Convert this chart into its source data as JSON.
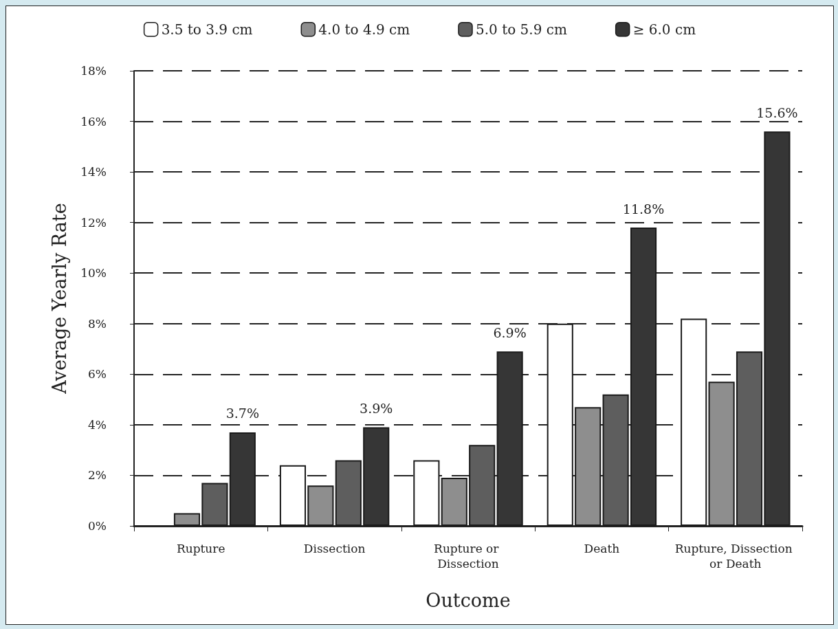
{
  "chart_data": {
    "type": "bar",
    "xlabel": "Outcome",
    "ylabel": "Average Yearly Rate",
    "categories": [
      "Rupture",
      "Dissection",
      "Rupture or Dissection",
      "Death",
      "Rupture, Dissection or Death"
    ],
    "series": [
      {
        "name": "3.5 to 3.9 cm",
        "color": "#ffffff",
        "values": [
          null,
          2.4,
          2.6,
          8.0,
          8.2
        ]
      },
      {
        "name": "4.0 to 4.9 cm",
        "color": "#8e8e8e",
        "values": [
          0.5,
          1.6,
          1.9,
          4.7,
          5.7
        ]
      },
      {
        "name": "5.0 to 5.9 cm",
        "color": "#5e5e5e",
        "values": [
          1.7,
          2.6,
          3.2,
          5.2,
          6.9
        ]
      },
      {
        "name": "≥ 6.0 cm",
        "color": "#363636",
        "values": [
          3.7,
          3.9,
          6.9,
          11.8,
          15.6
        ],
        "value_labels": [
          "3.7%",
          "3.9%",
          "6.9%",
          "11.8%",
          "15.6%"
        ]
      }
    ],
    "ylim": [
      0,
      18
    ],
    "yticks": [
      {
        "value": 0,
        "label": "0%"
      },
      {
        "value": 2,
        "label": "2%"
      },
      {
        "value": 4,
        "label": "4%"
      },
      {
        "value": 6,
        "label": "6%"
      },
      {
        "value": 8,
        "label": "8%"
      },
      {
        "value": 10,
        "label": "10%"
      },
      {
        "value": 12,
        "label": "12%"
      },
      {
        "value": 14,
        "label": "14%"
      },
      {
        "value": 16,
        "label": "16%"
      },
      {
        "value": 18,
        "label": "18%"
      }
    ],
    "grid": "y",
    "legend": "top"
  }
}
